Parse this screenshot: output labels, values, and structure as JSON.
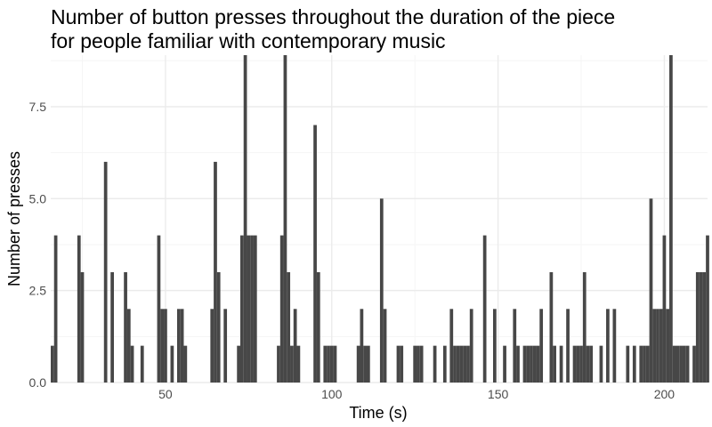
{
  "chart_data": {
    "type": "bar",
    "title_lines": [
      "Number of button presses throughout the duration of the piece",
      "for people familiar with contemporary music"
    ],
    "xlabel": "Time (s)",
    "ylabel": "Number of presses",
    "xlim": [
      15.5,
      213
    ],
    "ylim": [
      0,
      8.9
    ],
    "bin_width": 1,
    "x_ticks": [
      50,
      100,
      150,
      200
    ],
    "x_tick_labels": [
      "50",
      "100",
      "150",
      "200"
    ],
    "y_ticks": [
      0,
      2.5,
      5,
      7.5
    ],
    "y_tick_labels": [
      "0.0",
      "2.5",
      "5.0",
      "7.5"
    ],
    "grid": true,
    "bar_color": "#474747",
    "grid_major_color": "#ebebeb",
    "grid_minor_color": "#f5f5f5",
    "x": [
      16,
      17,
      24,
      25,
      32,
      34,
      38,
      39,
      40,
      43,
      48,
      49,
      50,
      52,
      54,
      55,
      56,
      64,
      65,
      66,
      68,
      72,
      73,
      74,
      75,
      76,
      77,
      84,
      85,
      86,
      87,
      88,
      89,
      90,
      95,
      96,
      98,
      99,
      100,
      101,
      108,
      109,
      110,
      111,
      115,
      116,
      120,
      121,
      125,
      126,
      127,
      131,
      134,
      136,
      137,
      138,
      139,
      140,
      141,
      142,
      146,
      149,
      152,
      155,
      156,
      158,
      159,
      160,
      161,
      162,
      163,
      166,
      167,
      169,
      171,
      173,
      174,
      175,
      176,
      177,
      178,
      181,
      183,
      185,
      189,
      191,
      193,
      194,
      195,
      196,
      197,
      198,
      199,
      200,
      201,
      202,
      203,
      204,
      205,
      206,
      207,
      209,
      210,
      211,
      212,
      213
    ],
    "values": [
      1,
      4,
      4,
      3,
      6,
      3,
      3,
      2,
      1,
      1,
      4,
      2,
      2,
      1,
      2,
      2,
      1,
      2,
      6,
      3,
      2,
      1,
      4,
      9,
      4,
      4,
      4,
      1,
      4,
      9,
      3,
      1,
      2,
      1,
      7,
      3,
      1,
      1,
      1,
      1,
      1,
      2,
      1,
      1,
      5,
      2,
      1,
      1,
      1,
      1,
      1,
      1,
      1,
      2,
      1,
      1,
      1,
      1,
      1,
      2,
      4,
      2,
      1,
      2,
      1,
      1,
      1,
      1,
      1,
      1,
      2,
      3,
      1,
      1,
      2,
      1,
      1,
      1,
      3,
      1,
      1,
      1,
      2,
      2,
      1,
      1,
      1,
      1,
      1,
      5,
      2,
      2,
      2,
      4,
      2,
      9,
      1,
      1,
      1,
      1,
      1,
      1,
      3,
      3,
      3,
      4
    ]
  }
}
